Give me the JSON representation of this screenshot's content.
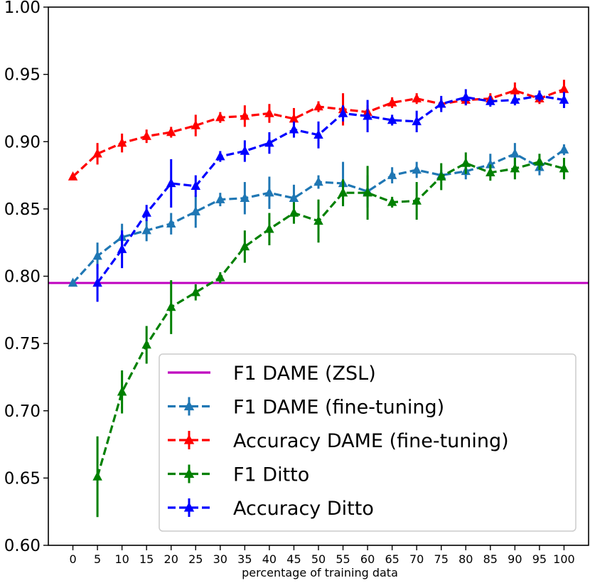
{
  "chart_data": {
    "type": "line",
    "title": "",
    "xlabel": "percentage of training data",
    "ylabel": "",
    "x_ticks": [
      "0",
      "5",
      "10",
      "15",
      "20",
      "25",
      "30",
      "35",
      "40",
      "45",
      "50",
      "55",
      "60",
      "65",
      "70",
      "75",
      "80",
      "85",
      "90",
      "95",
      "100"
    ],
    "y_ticks": [
      "0.60",
      "0.65",
      "0.70",
      "0.75",
      "0.80",
      "0.85",
      "0.90",
      "0.95",
      "1.00"
    ],
    "ylim": [
      0.6,
      1.0
    ],
    "xlim": [
      -5,
      105
    ],
    "grid": false,
    "legend_position": "lower-right",
    "hline": {
      "name": "F1 DAME (ZSL)",
      "y": 0.795,
      "color": "#bf00bf"
    },
    "series": [
      {
        "name": "F1 DAME (fine-tuning)",
        "color": "#1f77b4",
        "x": [
          0,
          5,
          10,
          15,
          20,
          25,
          30,
          35,
          40,
          45,
          50,
          55,
          60,
          65,
          70,
          75,
          80,
          85,
          90,
          95,
          100
        ],
        "values": [
          0.795,
          0.815,
          0.829,
          0.834,
          0.839,
          0.848,
          0.857,
          0.858,
          0.862,
          0.858,
          0.87,
          0.869,
          0.863,
          0.875,
          0.879,
          0.875,
          0.878,
          0.883,
          0.891,
          0.881,
          0.894
        ],
        "err": [
          0,
          0.01,
          0.01,
          0.008,
          0.008,
          0.012,
          0.005,
          0.012,
          0.012,
          0.01,
          0.005,
          0.016,
          0.012,
          0.006,
          0.006,
          0.004,
          0.006,
          0.008,
          0.008,
          0.006,
          0.004
        ]
      },
      {
        "name": "Accuracy DAME (fine-tuning)",
        "color": "#ff0000",
        "x": [
          0,
          5,
          10,
          15,
          20,
          25,
          30,
          35,
          40,
          45,
          50,
          55,
          60,
          65,
          70,
          75,
          80,
          85,
          90,
          95,
          100
        ],
        "values": [
          0.874,
          0.891,
          0.899,
          0.904,
          0.907,
          0.912,
          0.918,
          0.919,
          0.921,
          0.917,
          0.926,
          0.924,
          0.922,
          0.929,
          0.932,
          0.928,
          0.931,
          0.932,
          0.938,
          0.932,
          0.939
        ],
        "err": [
          0,
          0.008,
          0.007,
          0.005,
          0.004,
          0.008,
          0.004,
          0.008,
          0.007,
          0.008,
          0.004,
          0.012,
          0.005,
          0.004,
          0.004,
          0.004,
          0.004,
          0.004,
          0.006,
          0.004,
          0.007
        ]
      },
      {
        "name": "F1 Ditto",
        "color": "#008000",
        "x": [
          5,
          10,
          15,
          20,
          25,
          30,
          35,
          40,
          45,
          50,
          55,
          60,
          65,
          70,
          75,
          80,
          85,
          90,
          95,
          100
        ],
        "values": [
          0.651,
          0.714,
          0.749,
          0.777,
          0.788,
          0.799,
          0.822,
          0.835,
          0.847,
          0.841,
          0.862,
          0.862,
          0.855,
          0.856,
          0.874,
          0.884,
          0.877,
          0.88,
          0.885,
          0.88
        ],
        "err": [
          0.03,
          0.016,
          0.014,
          0.02,
          0.006,
          0.004,
          0.012,
          0.012,
          0.008,
          0.016,
          0.01,
          0.02,
          0.004,
          0.014,
          0.01,
          0.008,
          0.006,
          0.008,
          0.006,
          0.008
        ]
      },
      {
        "name": "Accuracy Ditto",
        "color": "#0000ff",
        "x": [
          5,
          10,
          15,
          20,
          25,
          30,
          35,
          40,
          45,
          50,
          55,
          60,
          65,
          70,
          75,
          80,
          85,
          90,
          95,
          100
        ],
        "values": [
          0.795,
          0.82,
          0.847,
          0.869,
          0.867,
          0.889,
          0.893,
          0.899,
          0.909,
          0.905,
          0.921,
          0.919,
          0.916,
          0.915,
          0.928,
          0.933,
          0.93,
          0.931,
          0.934,
          0.931
        ],
        "err": [
          0.014,
          0.014,
          0.006,
          0.018,
          0.008,
          0.004,
          0.008,
          0.008,
          0.006,
          0.01,
          0.006,
          0.012,
          0.004,
          0.008,
          0.006,
          0.006,
          0.004,
          0.004,
          0.004,
          0.006
        ]
      }
    ]
  }
}
